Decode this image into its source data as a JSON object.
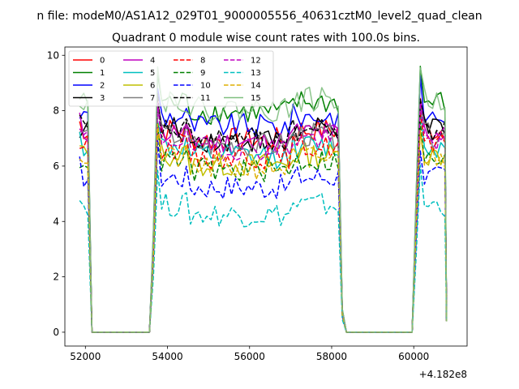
{
  "chart_data": {
    "type": "line",
    "suptitle": "n file: modeM0/AS1A12_029T01_9000005556_40631cztM0_level2_quad_clean",
    "title": "Quadrant 0 module wise count rates with 100.0s bins.",
    "xlabel": "",
    "ylabel": "",
    "x_offset_label": "+4.182e8",
    "xlim": [
      51500,
      61300
    ],
    "ylim": [
      -0.5,
      10.3
    ],
    "xticks": [
      52000,
      54000,
      56000,
      58000,
      60000
    ],
    "xtick_labels": [
      "52000",
      "54000",
      "56000",
      "58000",
      "60000"
    ],
    "yticks": [
      0,
      2,
      4,
      6,
      8,
      10
    ],
    "ytick_labels": [
      "0",
      "2",
      "4",
      "6",
      "8",
      "10"
    ],
    "grid": false,
    "legend_position": "top-left",
    "legend_columns": 4,
    "segments": [
      {
        "start": 51860,
        "end": 52060
      },
      {
        "start": 53660,
        "end": 58160
      },
      {
        "start": 60060,
        "end": 60760
      }
    ],
    "series": [
      {
        "name": "0",
        "color": "#ff0000",
        "dash": "solid",
        "level": 7.3
      },
      {
        "name": "1",
        "color": "#008000",
        "dash": "solid",
        "level": 8.3
      },
      {
        "name": "2",
        "color": "#0000ff",
        "dash": "solid",
        "level": 7.8
      },
      {
        "name": "3",
        "color": "#000000",
        "dash": "solid",
        "level": 7.3
      },
      {
        "name": "4",
        "color": "#bf00bf",
        "dash": "solid",
        "level": 7.2
      },
      {
        "name": "5",
        "color": "#00bfbf",
        "dash": "solid",
        "level": 6.7
      },
      {
        "name": "6",
        "color": "#bfbf00",
        "dash": "solid",
        "level": 6.4
      },
      {
        "name": "7",
        "color": "#808080",
        "dash": "solid",
        "level": 7.1
      },
      {
        "name": "8",
        "color": "#ff0000",
        "dash": "dashed",
        "level": 6.7
      },
      {
        "name": "9",
        "color": "#008000",
        "dash": "dashed",
        "level": 6.2
      },
      {
        "name": "10",
        "color": "#0000ff",
        "dash": "dashed",
        "level": 5.6
      },
      {
        "name": "11",
        "color": "#000000",
        "dash": "dashed",
        "level": 7.3
      },
      {
        "name": "12",
        "color": "#bf00bf",
        "dash": "dashed",
        "level": 7.0
      },
      {
        "name": "13",
        "color": "#00bfbf",
        "dash": "dashed",
        "level": 4.6
      },
      {
        "name": "14",
        "color": "#dfaf00",
        "dash": "dashed",
        "level": 6.3
      },
      {
        "name": "15",
        "color": "#7fbf7f",
        "dash": "solid",
        "level": 8.4
      }
    ]
  }
}
